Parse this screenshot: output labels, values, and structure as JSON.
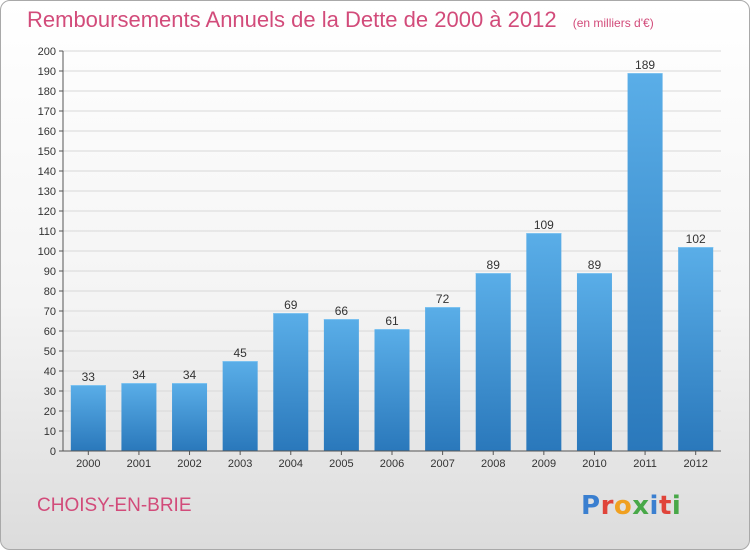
{
  "header": {
    "title": "Remboursements Annuels de la Dette de 2000 à 2012",
    "subtitle": "(en milliers d'€)"
  },
  "footer": {
    "commune": "CHOISY-EN-BRIE",
    "logo": "Proxiti"
  },
  "colors": {
    "title": "#d24b7a",
    "bar_top": "#5aaee8",
    "bar_bottom": "#2a78bb",
    "grid": "#d8d8d8"
  },
  "chart_data": {
    "type": "bar",
    "title": "Remboursements Annuels de la Dette de 2000 à 2012",
    "subtitle": "(en milliers d'€)",
    "categories": [
      "2000",
      "2001",
      "2002",
      "2003",
      "2004",
      "2005",
      "2006",
      "2007",
      "2008",
      "2009",
      "2010",
      "2011",
      "2012"
    ],
    "values": [
      33,
      34,
      34,
      45,
      69,
      66,
      61,
      72,
      89,
      109,
      89,
      189,
      102
    ],
    "ylim": [
      0,
      200
    ],
    "ytick_step": 10,
    "grid": true,
    "data_labels": true
  }
}
